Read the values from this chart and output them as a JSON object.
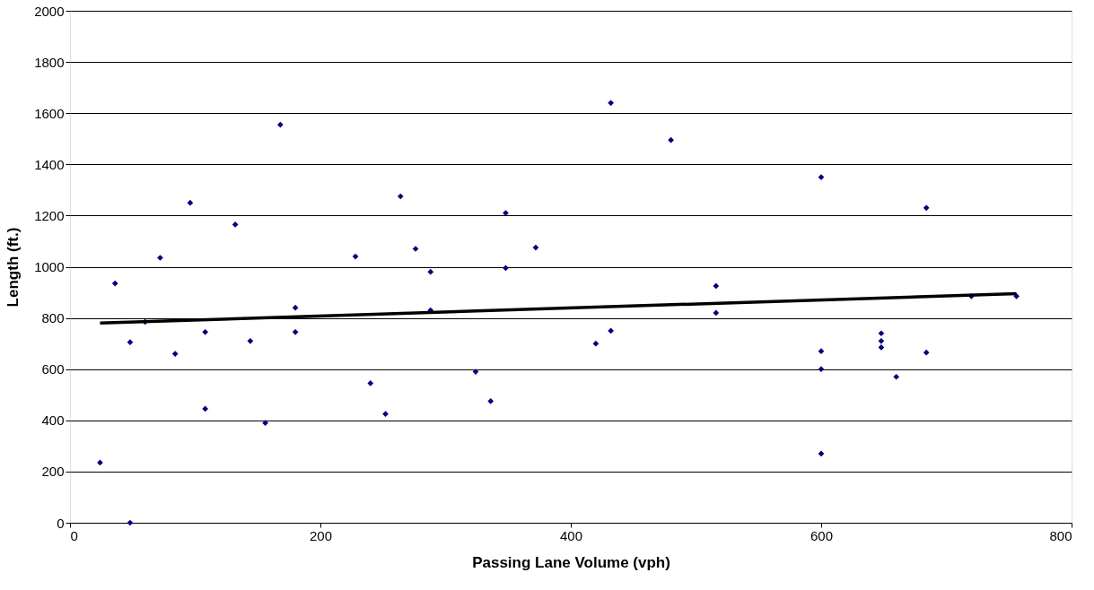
{
  "chart_data": {
    "type": "scatter",
    "xlabel": "Passing Lane Volume (vph)",
    "ylabel": "Length (ft.)",
    "xlim": [
      0,
      800
    ],
    "xticks": [
      0,
      200,
      400,
      600,
      800
    ],
    "ylim": [
      0,
      2000
    ],
    "yticks": [
      0,
      200,
      400,
      600,
      800,
      1000,
      1200,
      1400,
      1600,
      1800,
      2000
    ],
    "grid": "y",
    "marker": "diamond",
    "series": [
      {
        "color": "#000080",
        "x": [
          24,
          36,
          48,
          48,
          60,
          72,
          84,
          96,
          108,
          108,
          132,
          144,
          156,
          168,
          180,
          180,
          228,
          240,
          252,
          264,
          276,
          288,
          288,
          324,
          336,
          348,
          348,
          372,
          420,
          432,
          432,
          480,
          516,
          516,
          600,
          600,
          600,
          600,
          648,
          648,
          648,
          660,
          684,
          684,
          720,
          756
        ],
        "values": [
          235,
          935,
          705,
          0,
          785,
          1035,
          660,
          1250,
          745,
          445,
          1165,
          710,
          390,
          1555,
          840,
          745,
          1040,
          545,
          425,
          1275,
          1070,
          980,
          830,
          590,
          475,
          1210,
          995,
          1075,
          700,
          1640,
          750,
          1495,
          925,
          820,
          1350,
          670,
          600,
          270,
          740,
          710,
          685,
          570,
          1230,
          665,
          885,
          885
        ]
      },
      {
        "type": "line",
        "color": "#000000",
        "marker": "none",
        "line_style": "solid",
        "x": [
          24,
          756
        ],
        "values": [
          780,
          895
        ]
      }
    ]
  }
}
